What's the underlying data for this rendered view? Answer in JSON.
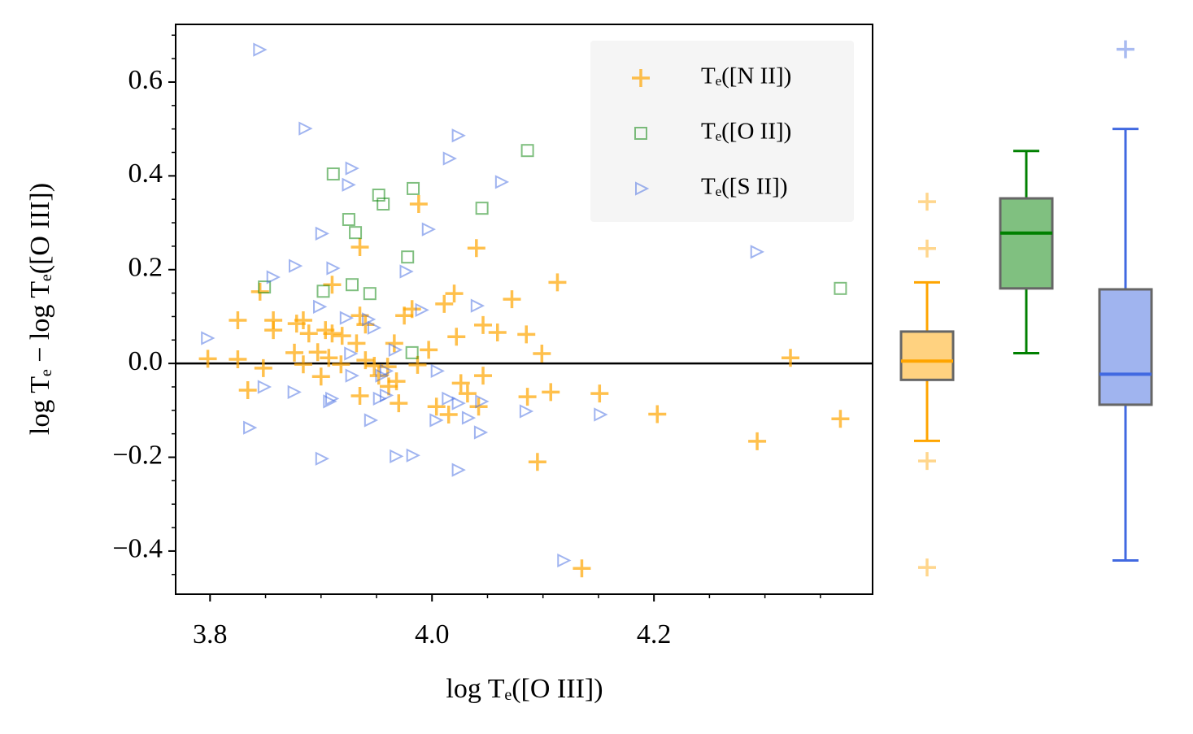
{
  "chart_data": [
    {
      "type": "scatter",
      "xlabel": "log Tₑ([O III])",
      "ylabel": "log Tₑ − log Tₑ([O III])",
      "xlim": [
        3.769,
        4.397
      ],
      "ylim": [
        -0.492,
        0.723
      ],
      "xticks": [
        3.8,
        {
          "value": 4.0,
          "label": "4.0"
        },
        4.2
      ],
      "yticks": [
        {
          "value": -0.4,
          "label": "−0.4"
        },
        {
          "value": -0.2,
          "label": "−0.2"
        },
        {
          "value": 0.0,
          "label": "0.0"
        },
        0.2,
        0.4,
        0.6
      ],
      "xminorticks": [
        3.85,
        3.9,
        3.95,
        4.05,
        4.1,
        4.15,
        4.25,
        4.3,
        4.35
      ],
      "yminorticks": [
        -0.45,
        -0.35,
        -0.3,
        -0.25,
        -0.15,
        -0.1,
        -0.05,
        0.05,
        0.1,
        0.15,
        0.25,
        0.3,
        0.35,
        0.45,
        0.5,
        0.55,
        0.65,
        0.7
      ],
      "hline": 0,
      "legend": "upper right",
      "series": [
        {
          "name": "Tₑ([N II])",
          "color": "#ffa500",
          "marker": "plus",
          "x": [
            3.798,
            3.825,
            3.825,
            3.834,
            3.848,
            3.845,
            3.857,
            3.857,
            3.878,
            3.884,
            3.889,
            3.876,
            3.897,
            3.904,
            3.91,
            3.91,
            3.9,
            3.907,
            3.919,
            3.935,
            3.935,
            3.932,
            3.935,
            3.94,
            3.94,
            3.948,
            3.952,
            3.96,
            3.961,
            3.968,
            3.97,
            3.966,
            3.975,
            3.982,
            3.988,
            3.987,
            3.997,
            4.004,
            4.011,
            4.015,
            4.02,
            4.022,
            4.026,
            4.032,
            4.04,
            4.042,
            4.046,
            4.046,
            4.059,
            4.072,
            4.085,
            4.086,
            4.099,
            4.107,
            4.113,
            4.095,
            4.151,
            4.203,
            4.293,
            4.323,
            4.368,
            4.135,
            3.884,
            3.918
          ],
          "values": [
            0.01,
            0.092,
            0.009,
            -0.057,
            -0.01,
            0.153,
            0.092,
            0.071,
            0.085,
            0.092,
            0.064,
            0.023,
            0.024,
            0.071,
            0.064,
            0.168,
            -0.028,
            0.012,
            0.059,
            0.248,
            0.102,
            0.043,
            -0.069,
            0.007,
            0.083,
            -0.005,
            -0.026,
            -0.007,
            -0.049,
            -0.038,
            -0.085,
            0.043,
            0.102,
            0.116,
            0.34,
            -0.003,
            0.029,
            -0.092,
            0.127,
            -0.109,
            0.149,
            0.057,
            -0.042,
            -0.064,
            0.246,
            -0.092,
            -0.026,
            0.082,
            0.066,
            0.137,
            0.062,
            -0.071,
            0.021,
            -0.061,
            0.173,
            -0.21,
            -0.064,
            -0.108,
            -0.166,
            0.012,
            -0.118,
            -0.437,
            -0.002,
            -0.002
          ]
        },
        {
          "name": "Tₑ([O II])",
          "color": "#008000",
          "marker": "square",
          "x": [
            3.849,
            3.911,
            3.952,
            3.956,
            3.983,
            3.925,
            3.931,
            3.902,
            3.928,
            3.944,
            3.978,
            4.045,
            4.086,
            3.982,
            4.368
          ],
          "values": [
            0.163,
            0.404,
            0.359,
            0.34,
            0.373,
            0.307,
            0.279,
            0.154,
            0.168,
            0.149,
            0.227,
            0.331,
            0.454,
            0.023,
            0.16
          ]
        },
        {
          "name": "Tₑ([S II])",
          "color": "#4169e1",
          "marker": "triangle-right",
          "x": [
            3.844,
            3.885,
            4.023,
            4.015,
            3.927,
            3.924,
            4.062,
            3.996,
            3.9,
            3.876,
            3.91,
            3.856,
            3.976,
            4.292,
            3.898,
            3.99,
            4.04,
            3.922,
            3.942,
            3.947,
            3.797,
            3.966,
            3.926,
            4.004,
            3.848,
            3.875,
            3.927,
            3.958,
            3.958,
            3.952,
            3.909,
            3.907,
            4.014,
            4.044,
            4.023,
            4.084,
            4.003,
            4.032,
            4.043,
            4.151,
            3.944,
            3.835,
            3.9,
            3.967,
            3.982,
            4.023,
            4.118,
            3.954
          ],
          "values": [
            0.669,
            0.501,
            0.486,
            0.437,
            0.416,
            0.381,
            0.387,
            0.286,
            0.277,
            0.208,
            0.203,
            0.184,
            0.196,
            0.238,
            0.121,
            0.114,
            0.123,
            0.097,
            0.094,
            0.076,
            0.054,
            0.029,
            0.021,
            -0.016,
            -0.05,
            -0.061,
            -0.026,
            -0.016,
            -0.068,
            -0.075,
            -0.075,
            -0.081,
            -0.075,
            -0.081,
            -0.085,
            -0.102,
            -0.121,
            -0.116,
            -0.147,
            -0.109,
            -0.121,
            -0.137,
            -0.203,
            -0.198,
            -0.196,
            -0.227,
            -0.42,
            -0.026
          ]
        }
      ]
    },
    {
      "type": "box",
      "ylim": [
        -0.492,
        0.723
      ],
      "boxes": [
        {
          "color": "#ffa500",
          "fill": "#ffd280",
          "whisker_low": -0.165,
          "q1": -0.035,
          "median": 0.005,
          "q3": 0.068,
          "whisker_high": 0.173,
          "fliers": [
            0.345,
            0.245,
            -0.208,
            -0.435
          ]
        },
        {
          "color": "#008000",
          "fill": "#80c080",
          "whisker_low": 0.022,
          "q1": 0.16,
          "median": 0.278,
          "q3": 0.352,
          "whisker_high": 0.453,
          "fliers": []
        },
        {
          "color": "#4169e1",
          "fill": "#a0b4ef",
          "whisker_low": -0.42,
          "q1": -0.088,
          "median": -0.023,
          "q3": 0.158,
          "whisker_high": 0.5,
          "fliers": [
            0.67
          ]
        }
      ]
    }
  ]
}
